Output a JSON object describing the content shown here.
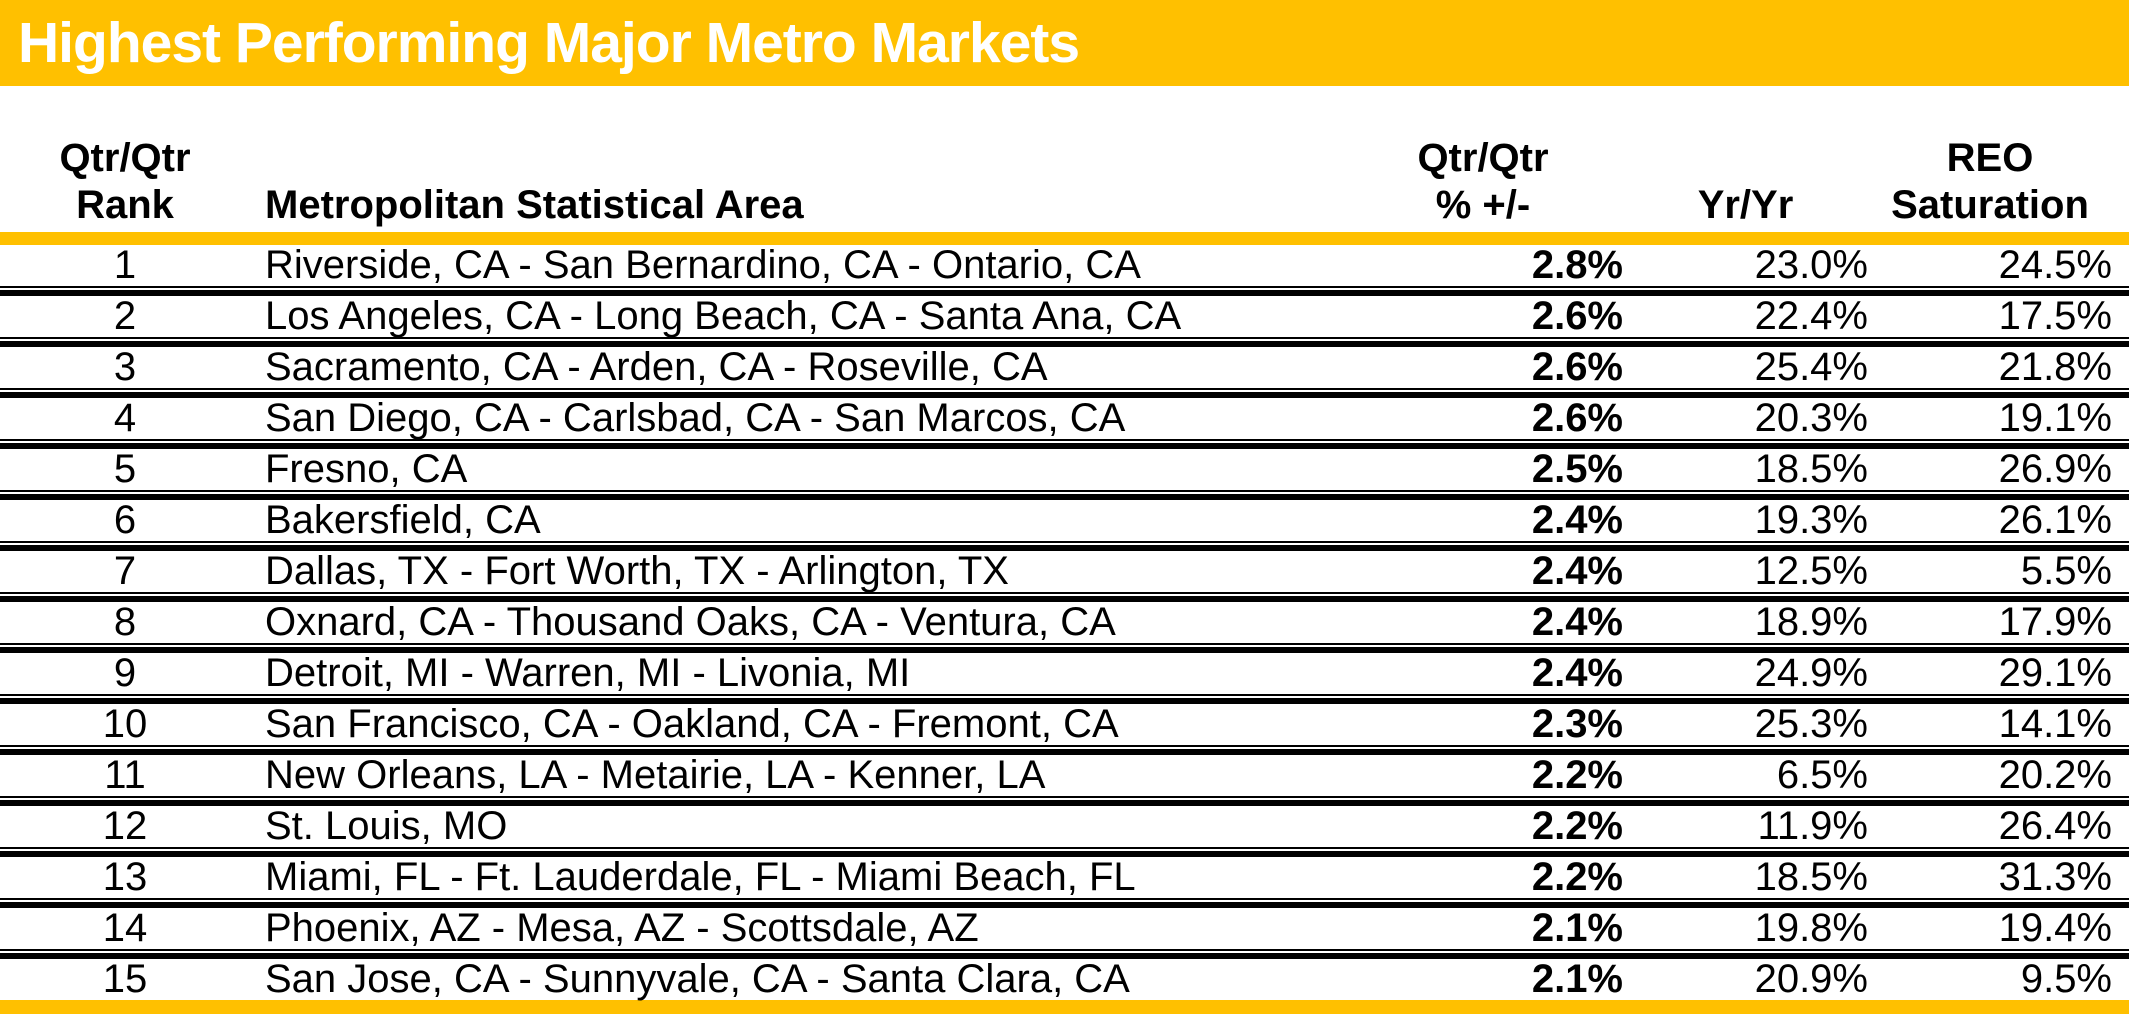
{
  "title": "Highest Performing Major Metro Markets",
  "colors": {
    "accent_gold": "#FFC000",
    "title_text": "#FFFFFF",
    "body_text": "#000000"
  },
  "table": {
    "headers": {
      "rank": "Qtr/Qtr\nRank",
      "msa": "Metropolitan Statistical Area",
      "qtr": "Qtr/Qtr\n% +/-",
      "yr": "Yr/Yr",
      "reo": "REO\nSaturation"
    },
    "rows": [
      {
        "rank": "1",
        "msa": "Riverside, CA - San Bernardino, CA - Ontario, CA",
        "qtr": "2.8%",
        "yr": "23.0%",
        "reo": "24.5%"
      },
      {
        "rank": "2",
        "msa": "Los Angeles, CA - Long Beach, CA - Santa Ana, CA",
        "qtr": "2.6%",
        "yr": "22.4%",
        "reo": "17.5%"
      },
      {
        "rank": "3",
        "msa": "Sacramento, CA - Arden, CA - Roseville, CA",
        "qtr": "2.6%",
        "yr": "25.4%",
        "reo": "21.8%"
      },
      {
        "rank": "4",
        "msa": "San Diego, CA - Carlsbad, CA - San Marcos, CA",
        "qtr": "2.6%",
        "yr": "20.3%",
        "reo": "19.1%"
      },
      {
        "rank": "5",
        "msa": "Fresno, CA",
        "qtr": "2.5%",
        "yr": "18.5%",
        "reo": "26.9%"
      },
      {
        "rank": "6",
        "msa": "Bakersfield, CA",
        "qtr": "2.4%",
        "yr": "19.3%",
        "reo": "26.1%"
      },
      {
        "rank": "7",
        "msa": "Dallas, TX - Fort Worth, TX - Arlington, TX",
        "qtr": "2.4%",
        "yr": "12.5%",
        "reo": "5.5%"
      },
      {
        "rank": "8",
        "msa": "Oxnard, CA - Thousand Oaks, CA - Ventura, CA",
        "qtr": "2.4%",
        "yr": "18.9%",
        "reo": "17.9%"
      },
      {
        "rank": "9",
        "msa": "Detroit, MI - Warren, MI - Livonia, MI",
        "qtr": "2.4%",
        "yr": "24.9%",
        "reo": "29.1%"
      },
      {
        "rank": "10",
        "msa": "San Francisco, CA - Oakland, CA - Fremont, CA",
        "qtr": "2.3%",
        "yr": "25.3%",
        "reo": "14.1%"
      },
      {
        "rank": "11",
        "msa": "New Orleans, LA - Metairie, LA - Kenner, LA",
        "qtr": "2.2%",
        "yr": "6.5%",
        "reo": "20.2%"
      },
      {
        "rank": "12",
        "msa": "St. Louis, MO",
        "qtr": "2.2%",
        "yr": "11.9%",
        "reo": "26.4%"
      },
      {
        "rank": "13",
        "msa": "Miami, FL - Ft. Lauderdale, FL - Miami Beach, FL",
        "qtr": "2.2%",
        "yr": "18.5%",
        "reo": "31.3%"
      },
      {
        "rank": "14",
        "msa": "Phoenix, AZ - Mesa, AZ - Scottsdale, AZ",
        "qtr": "2.1%",
        "yr": "19.8%",
        "reo": "19.4%"
      },
      {
        "rank": "15",
        "msa": "San Jose, CA - Sunnyvale, CA - Santa Clara, CA",
        "qtr": "2.1%",
        "yr": "20.9%",
        "reo": "9.5%"
      }
    ]
  },
  "chart_data": {
    "type": "table",
    "title": "Highest Performing Major Metro Markets",
    "columns": [
      "Qtr/Qtr Rank",
      "Metropolitan Statistical Area",
      "Qtr/Qtr % +/-",
      "Yr/Yr",
      "REO Saturation"
    ],
    "rows": [
      [
        1,
        "Riverside, CA - San Bernardino, CA - Ontario, CA",
        2.8,
        23.0,
        24.5
      ],
      [
        2,
        "Los Angeles, CA - Long Beach, CA - Santa Ana, CA",
        2.6,
        22.4,
        17.5
      ],
      [
        3,
        "Sacramento, CA - Arden, CA - Roseville, CA",
        2.6,
        25.4,
        21.8
      ],
      [
        4,
        "San Diego, CA - Carlsbad, CA - San Marcos, CA",
        2.6,
        20.3,
        19.1
      ],
      [
        5,
        "Fresno, CA",
        2.5,
        18.5,
        26.9
      ],
      [
        6,
        "Bakersfield, CA",
        2.4,
        19.3,
        26.1
      ],
      [
        7,
        "Dallas, TX - Fort Worth, TX - Arlington, TX",
        2.4,
        12.5,
        5.5
      ],
      [
        8,
        "Oxnard, CA - Thousand Oaks, CA - Ventura, CA",
        2.4,
        18.9,
        17.9
      ],
      [
        9,
        "Detroit, MI - Warren, MI - Livonia, MI",
        2.4,
        24.9,
        29.1
      ],
      [
        10,
        "San Francisco, CA - Oakland, CA - Fremont, CA",
        2.3,
        25.3,
        14.1
      ],
      [
        11,
        "New Orleans, LA - Metairie, LA - Kenner, LA",
        2.2,
        6.5,
        20.2
      ],
      [
        12,
        "St. Louis, MO",
        2.2,
        11.9,
        26.4
      ],
      [
        13,
        "Miami, FL - Ft. Lauderdale, FL - Miami Beach, FL",
        2.2,
        18.5,
        31.3
      ],
      [
        14,
        "Phoenix, AZ - Mesa, AZ - Scottsdale, AZ",
        2.1,
        19.8,
        19.4
      ],
      [
        15,
        "San Jose, CA - Sunnyvale, CA - Santa Clara, CA",
        2.1,
        20.9,
        9.5
      ]
    ],
    "units": "percent",
    "notes": "values shown with % suffix; Qtr/Qtr % +/- column rendered bold"
  }
}
